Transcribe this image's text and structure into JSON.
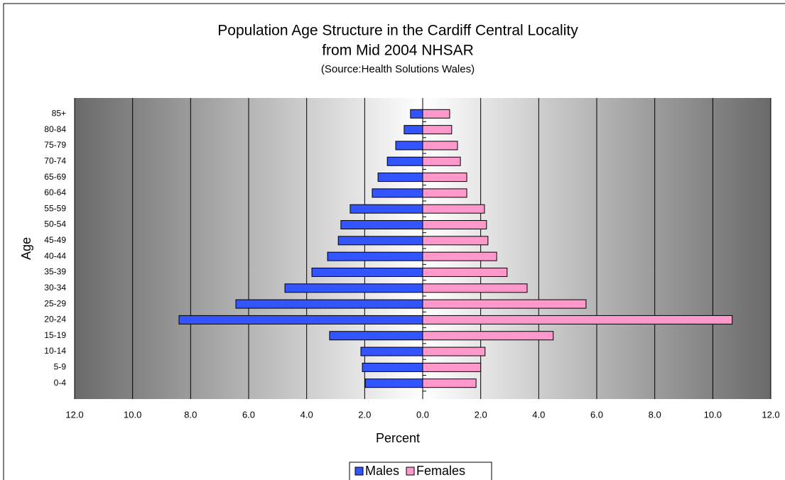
{
  "chart_data": {
    "type": "pyramid",
    "title": "Population Age Structure in the Cardiff Central Locality",
    "subtitle": "from Mid 2004 NHSAR",
    "source": "(Source:Health Solutions Wales)",
    "x_label": "Percent",
    "y_label": "Age",
    "categories": [
      "0-4",
      "5-9",
      "10-14",
      "15-19",
      "20-24",
      "25-29",
      "30-34",
      "35-39",
      "40-44",
      "45-49",
      "50-54",
      "55-59",
      "60-64",
      "65-69",
      "70-74",
      "75-79",
      "80-84",
      "85+"
    ],
    "series": [
      {
        "name": "Males",
        "color": "#3355ff",
        "values": [
          -1.98,
          -2.08,
          -2.13,
          -3.21,
          -8.4,
          -6.44,
          -4.75,
          -3.82,
          -3.28,
          -2.91,
          -2.82,
          -2.5,
          -1.74,
          -1.54,
          -1.22,
          -0.93,
          -0.64,
          -0.42
        ]
      },
      {
        "name": "Females",
        "color": "#ff99cc",
        "values": [
          1.84,
          2.0,
          2.15,
          4.5,
          10.67,
          5.63,
          3.6,
          2.91,
          2.55,
          2.25,
          2.2,
          2.13,
          1.52,
          1.52,
          1.3,
          1.2,
          1.0,
          0.93
        ]
      }
    ],
    "xlim": [
      -12,
      12
    ],
    "xticks": [
      {
        "value": -12,
        "label": "12.0"
      },
      {
        "value": -10,
        "label": "10.0"
      },
      {
        "value": -8,
        "label": "8.0"
      },
      {
        "value": -6,
        "label": "6.0"
      },
      {
        "value": -4,
        "label": "4.0"
      },
      {
        "value": -2,
        "label": "2.0"
      },
      {
        "value": 0,
        "label": "0.0"
      },
      {
        "value": 2,
        "label": "2.0"
      },
      {
        "value": 4,
        "label": "4.0"
      },
      {
        "value": 6,
        "label": "6.0"
      },
      {
        "value": 8,
        "label": "8.0"
      },
      {
        "value": 10,
        "label": "10.0"
      },
      {
        "value": 12,
        "label": "12.0"
      }
    ],
    "negative_tick_color": "#ff0000",
    "grid": true,
    "legend": "bottom"
  }
}
